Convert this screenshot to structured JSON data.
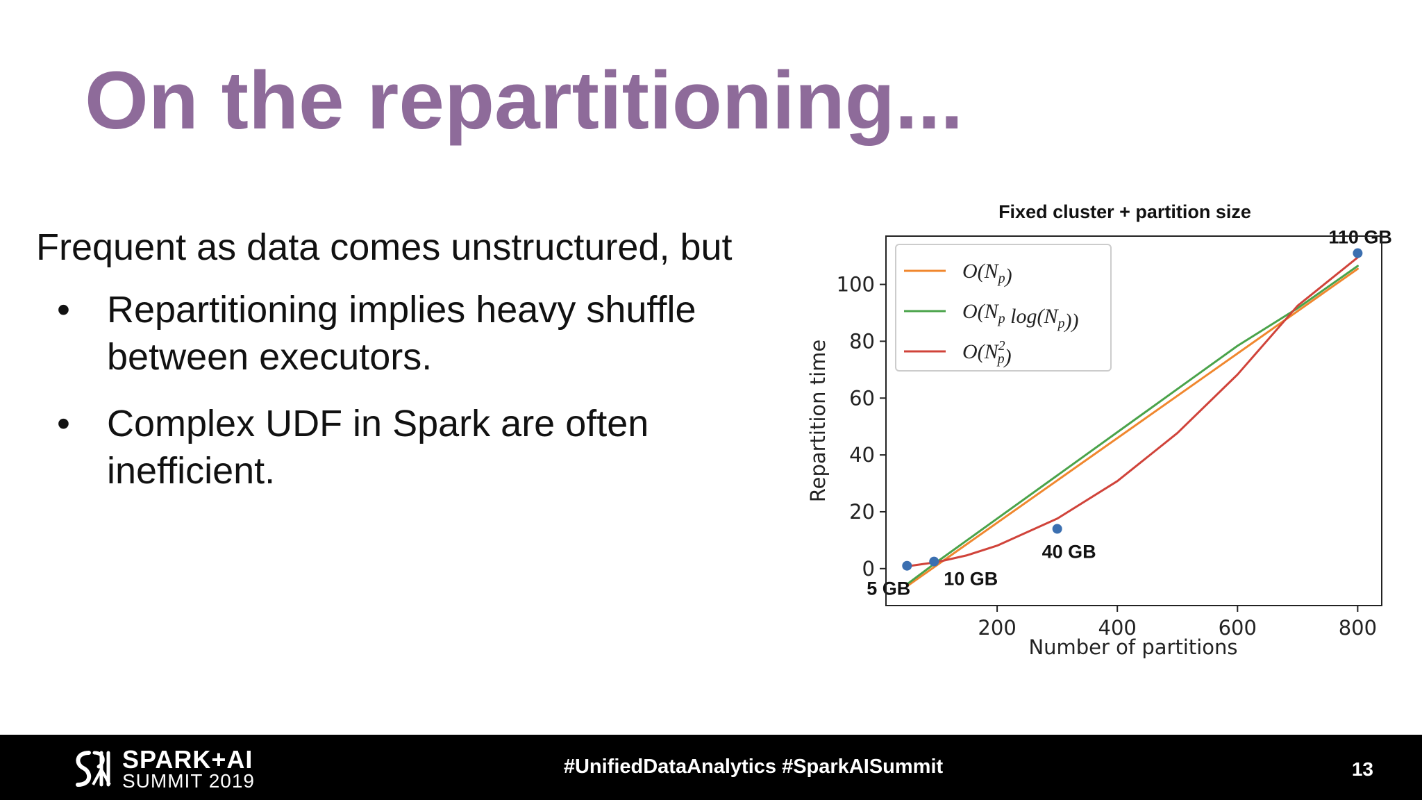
{
  "slide": {
    "title": "On the repartitioning...",
    "intro": "Frequent as data comes unstructured, but",
    "bullet_glyph": "•",
    "bullets": [
      "Repartitioning implies heavy shuffle between executors.",
      "Complex UDF in Spark are often inefficient."
    ],
    "title_color": "#8e6b9a"
  },
  "chart_data": {
    "type": "line",
    "title": "Fixed cluster + partition size",
    "xlabel": "Number of partitions",
    "ylabel": "Repartition time",
    "xlim": [
      15,
      840
    ],
    "ylim": [
      -13,
      117
    ],
    "xticks": [
      200,
      400,
      600,
      800
    ],
    "yticks": [
      0,
      20,
      40,
      60,
      80,
      100
    ],
    "grid": false,
    "legend_position": "top-left",
    "points": [
      {
        "x": 50,
        "y": 1,
        "label": "5 GB"
      },
      {
        "x": 95,
        "y": 2.5,
        "label": "10 GB"
      },
      {
        "x": 300,
        "y": 14,
        "label": "40 GB"
      },
      {
        "x": 800,
        "y": 111,
        "label": "110 GB"
      }
    ],
    "point_color": "#3b6fb0",
    "series": [
      {
        "name": "O(N_p)",
        "color": "#f0872e",
        "x": [
          50,
          800
        ],
        "y": [
          -6.2,
          105.5
        ]
      },
      {
        "name": "O(N_p log(N_p))",
        "color": "#4aa34a",
        "x": [
          50,
          100,
          200,
          300,
          400,
          500,
          600,
          700,
          800
        ],
        "y": [
          -5.5,
          2.4,
          17.6,
          32.8,
          48.0,
          63.2,
          78.4,
          91.6,
          106.5
        ]
      },
      {
        "name": "O(N_p^2)",
        "color": "#d0433a",
        "x": [
          50,
          100,
          150,
          200,
          300,
          400,
          500,
          600,
          700,
          800
        ],
        "y": [
          0.8,
          2.3,
          4.7,
          8.1,
          17.6,
          30.8,
          47.7,
          68.3,
          92.5,
          109.5
        ]
      }
    ]
  },
  "footer": {
    "logo_line1": "SPARK+AI",
    "logo_line2": "SUMMIT 2019",
    "hashtags": "#UnifiedDataAnalytics #SparkAISummit",
    "page_number": "13"
  }
}
